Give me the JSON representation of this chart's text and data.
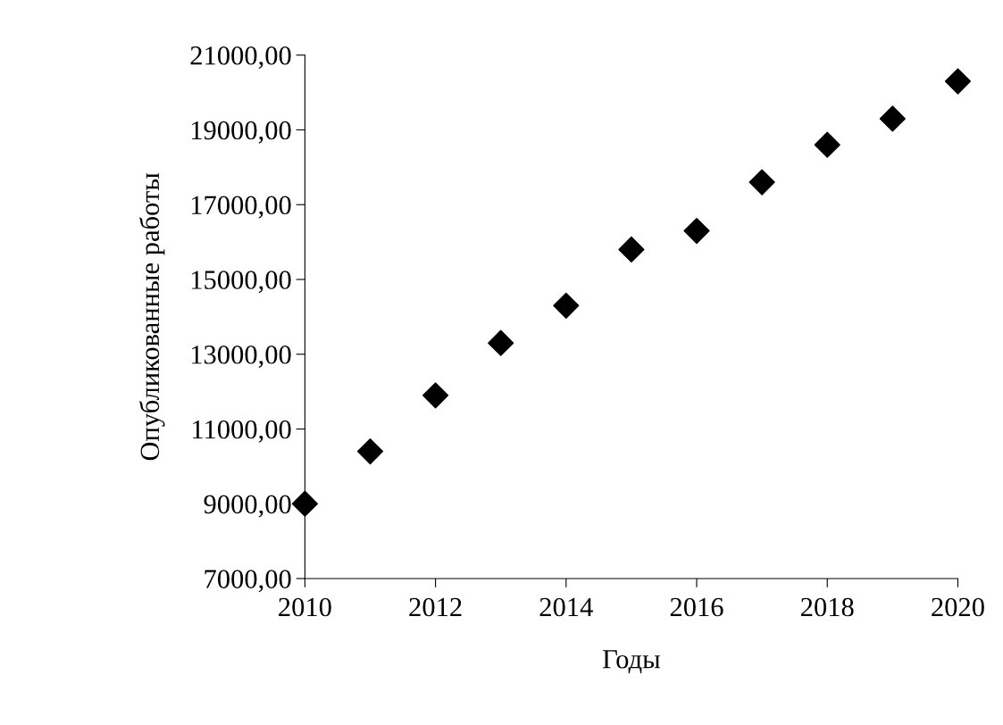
{
  "chart_data": {
    "type": "scatter",
    "xlabel": "Годы",
    "ylabel": "Опубликованные работы",
    "x": [
      2010,
      2011,
      2012,
      2013,
      2014,
      2015,
      2016,
      2017,
      2018,
      2019,
      2020
    ],
    "series": [
      {
        "color": "#000000",
        "values": [
          9000,
          10400,
          11900,
          13300,
          14300,
          15800,
          16300,
          17600,
          18600,
          19300,
          20300
        ]
      }
    ],
    "marker": "diamond",
    "grid": false,
    "legend": false,
    "xlim": [
      2010,
      2020
    ],
    "xticks": [
      2010,
      2012,
      2014,
      2016,
      2018,
      2020
    ],
    "ylim": [
      7000,
      21000
    ],
    "yticks": [
      {
        "value": 7000,
        "label": "7000,00"
      },
      {
        "value": 9000,
        "label": "9000,00"
      },
      {
        "value": 11000,
        "label": "11000,00"
      },
      {
        "value": 13000,
        "label": "13000,00"
      },
      {
        "value": 15000,
        "label": "15000,00"
      },
      {
        "value": 17000,
        "label": "17000,00"
      },
      {
        "value": 19000,
        "label": "19000,00"
      },
      {
        "value": 21000,
        "label": "21000,00"
      }
    ]
  }
}
